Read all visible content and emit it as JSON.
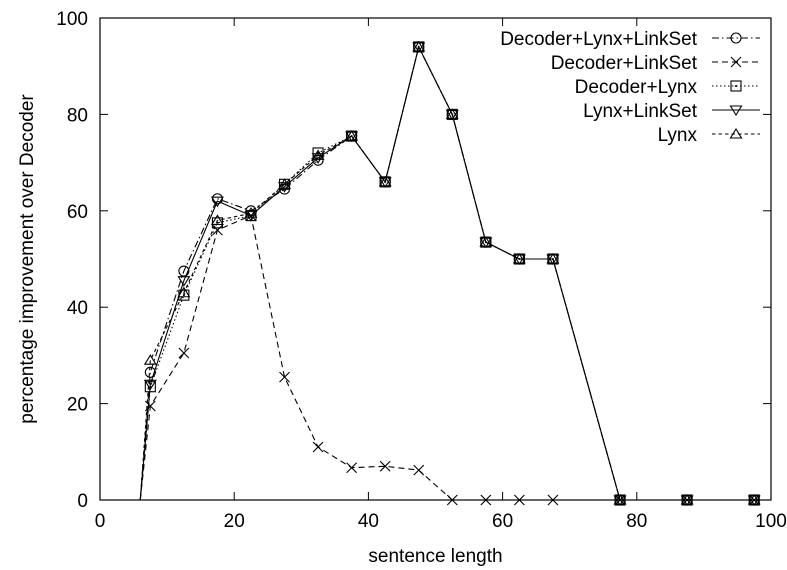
{
  "chart_data": {
    "type": "line",
    "title": "",
    "xlabel": "sentence length",
    "ylabel": "percentage improvement over Decoder",
    "xlim": [
      0,
      100
    ],
    "ylim": [
      0,
      100
    ],
    "xticks": [
      0,
      20,
      40,
      60,
      80,
      100
    ],
    "yticks": [
      0,
      20,
      40,
      60,
      80,
      100
    ],
    "grid": false,
    "legend_position": "top-right",
    "series": [
      {
        "name": "Decoder+Lynx+LinkSet",
        "marker": "circle",
        "dash": "dash-dot",
        "x": [
          6,
          7.5,
          12.5,
          17.5,
          22.5,
          27.5,
          32.5,
          37.5,
          42.5,
          47.5,
          52.5,
          57.5,
          62.5,
          67.5,
          77.5,
          87.5,
          97.5
        ],
        "y": [
          0,
          26.5,
          47.5,
          62.5,
          60,
          64.5,
          70.5,
          75.5,
          66,
          94,
          80,
          53.5,
          50,
          50,
          0,
          0,
          0
        ]
      },
      {
        "name": "Decoder+LinkSet",
        "marker": "x",
        "dash": "dashed",
        "x": [
          6,
          7.5,
          12.5,
          17.5,
          22.5,
          27.5,
          32.5,
          37.5,
          42.5,
          47.5,
          52.5,
          57.5,
          62.5,
          67.5,
          77.5,
          87.5,
          97.5
        ],
        "y": [
          0,
          19.5,
          30.5,
          56,
          59,
          25.5,
          11,
          6.7,
          7,
          6.2,
          0,
          0,
          0,
          0,
          0,
          0,
          0
        ]
      },
      {
        "name": "Decoder+Lynx",
        "marker": "square",
        "dash": "dotted",
        "x": [
          6,
          7.5,
          12.5,
          17.5,
          22.5,
          27.5,
          32.5,
          37.5,
          42.5,
          47.5,
          52.5,
          57.5,
          62.5,
          67.5,
          77.5,
          87.5,
          97.5
        ],
        "y": [
          0,
          23.5,
          42.5,
          57.5,
          59,
          65.5,
          72,
          75.5,
          66,
          94,
          80,
          53.5,
          50,
          50,
          0,
          0,
          0
        ]
      },
      {
        "name": "Lynx+LinkSet",
        "marker": "triangle-down",
        "dash": "solid",
        "x": [
          6,
          7.5,
          12.5,
          17.5,
          22.5,
          27.5,
          32.5,
          37.5,
          42.5,
          47.5,
          52.5,
          57.5,
          62.5,
          67.5,
          77.5,
          87.5,
          97.5
        ],
        "y": [
          0,
          24,
          45.5,
          62,
          59,
          65,
          71,
          75.5,
          66,
          94,
          80,
          53.5,
          50,
          50,
          0,
          0,
          0
        ]
      },
      {
        "name": "Lynx",
        "marker": "triangle-up",
        "dash": "short-dash",
        "x": [
          6,
          7.5,
          12.5,
          17.5,
          22.5,
          27.5,
          32.5,
          37.5,
          42.5,
          47.5,
          52.5,
          57.5,
          62.5,
          67.5,
          77.5,
          87.5,
          97.5
        ],
        "y": [
          0,
          29,
          43,
          58,
          59.5,
          65.5,
          71.5,
          75.5,
          66,
          94,
          80,
          53.5,
          50,
          50,
          0,
          0,
          0
        ]
      }
    ]
  }
}
